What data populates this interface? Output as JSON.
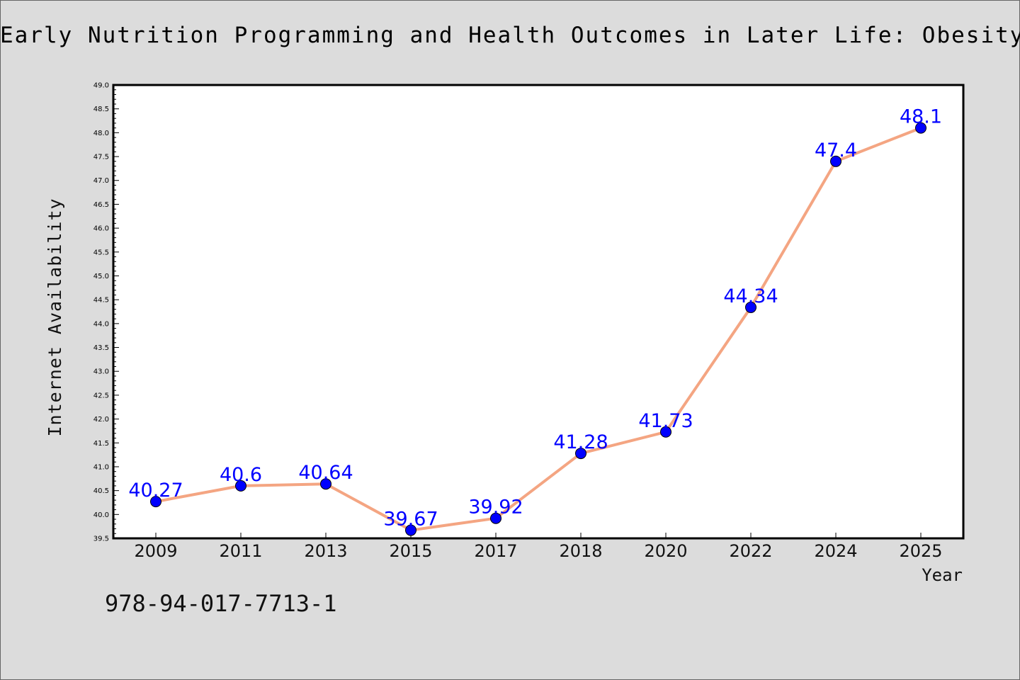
{
  "title": "Early Nutrition Programming and Health Outcomes in Later Life: Obesity and beyond",
  "footer_text": "978-94-017-7713-1",
  "colors": {
    "background": "#dcdcdc",
    "plot_background": "#ffffff",
    "line": "#f4a582",
    "marker": "#0000ff",
    "data_label": "#0000ff"
  },
  "chart_data": {
    "type": "line",
    "xlabel": "Year",
    "ylabel": "Internet Availability",
    "categories": [
      "2009",
      "2011",
      "2013",
      "2015",
      "2017",
      "2018",
      "2020",
      "2022",
      "2024",
      "2025"
    ],
    "series": [
      {
        "values": [
          40.27,
          40.6,
          40.64,
          39.67,
          39.92,
          41.28,
          41.73,
          44.34,
          47.4,
          48.1
        ],
        "labels": [
          "40.27",
          "40.6",
          "40.64",
          "39.67",
          "39.92",
          "41.28",
          "41.73",
          "44.34",
          "47.4",
          "48.1"
        ]
      }
    ],
    "ylim": [
      39.5,
      49.0
    ],
    "yticks": [
      "39.5",
      "40.0",
      "40.5",
      "41.0",
      "41.5",
      "42.0",
      "42.5",
      "43.0",
      "43.5",
      "44.0",
      "44.5",
      "45.0",
      "45.5",
      "46.0",
      "46.5",
      "47.0",
      "47.5",
      "48.0",
      "48.5",
      "49.0"
    ],
    "grid": false,
    "legend": "none"
  }
}
